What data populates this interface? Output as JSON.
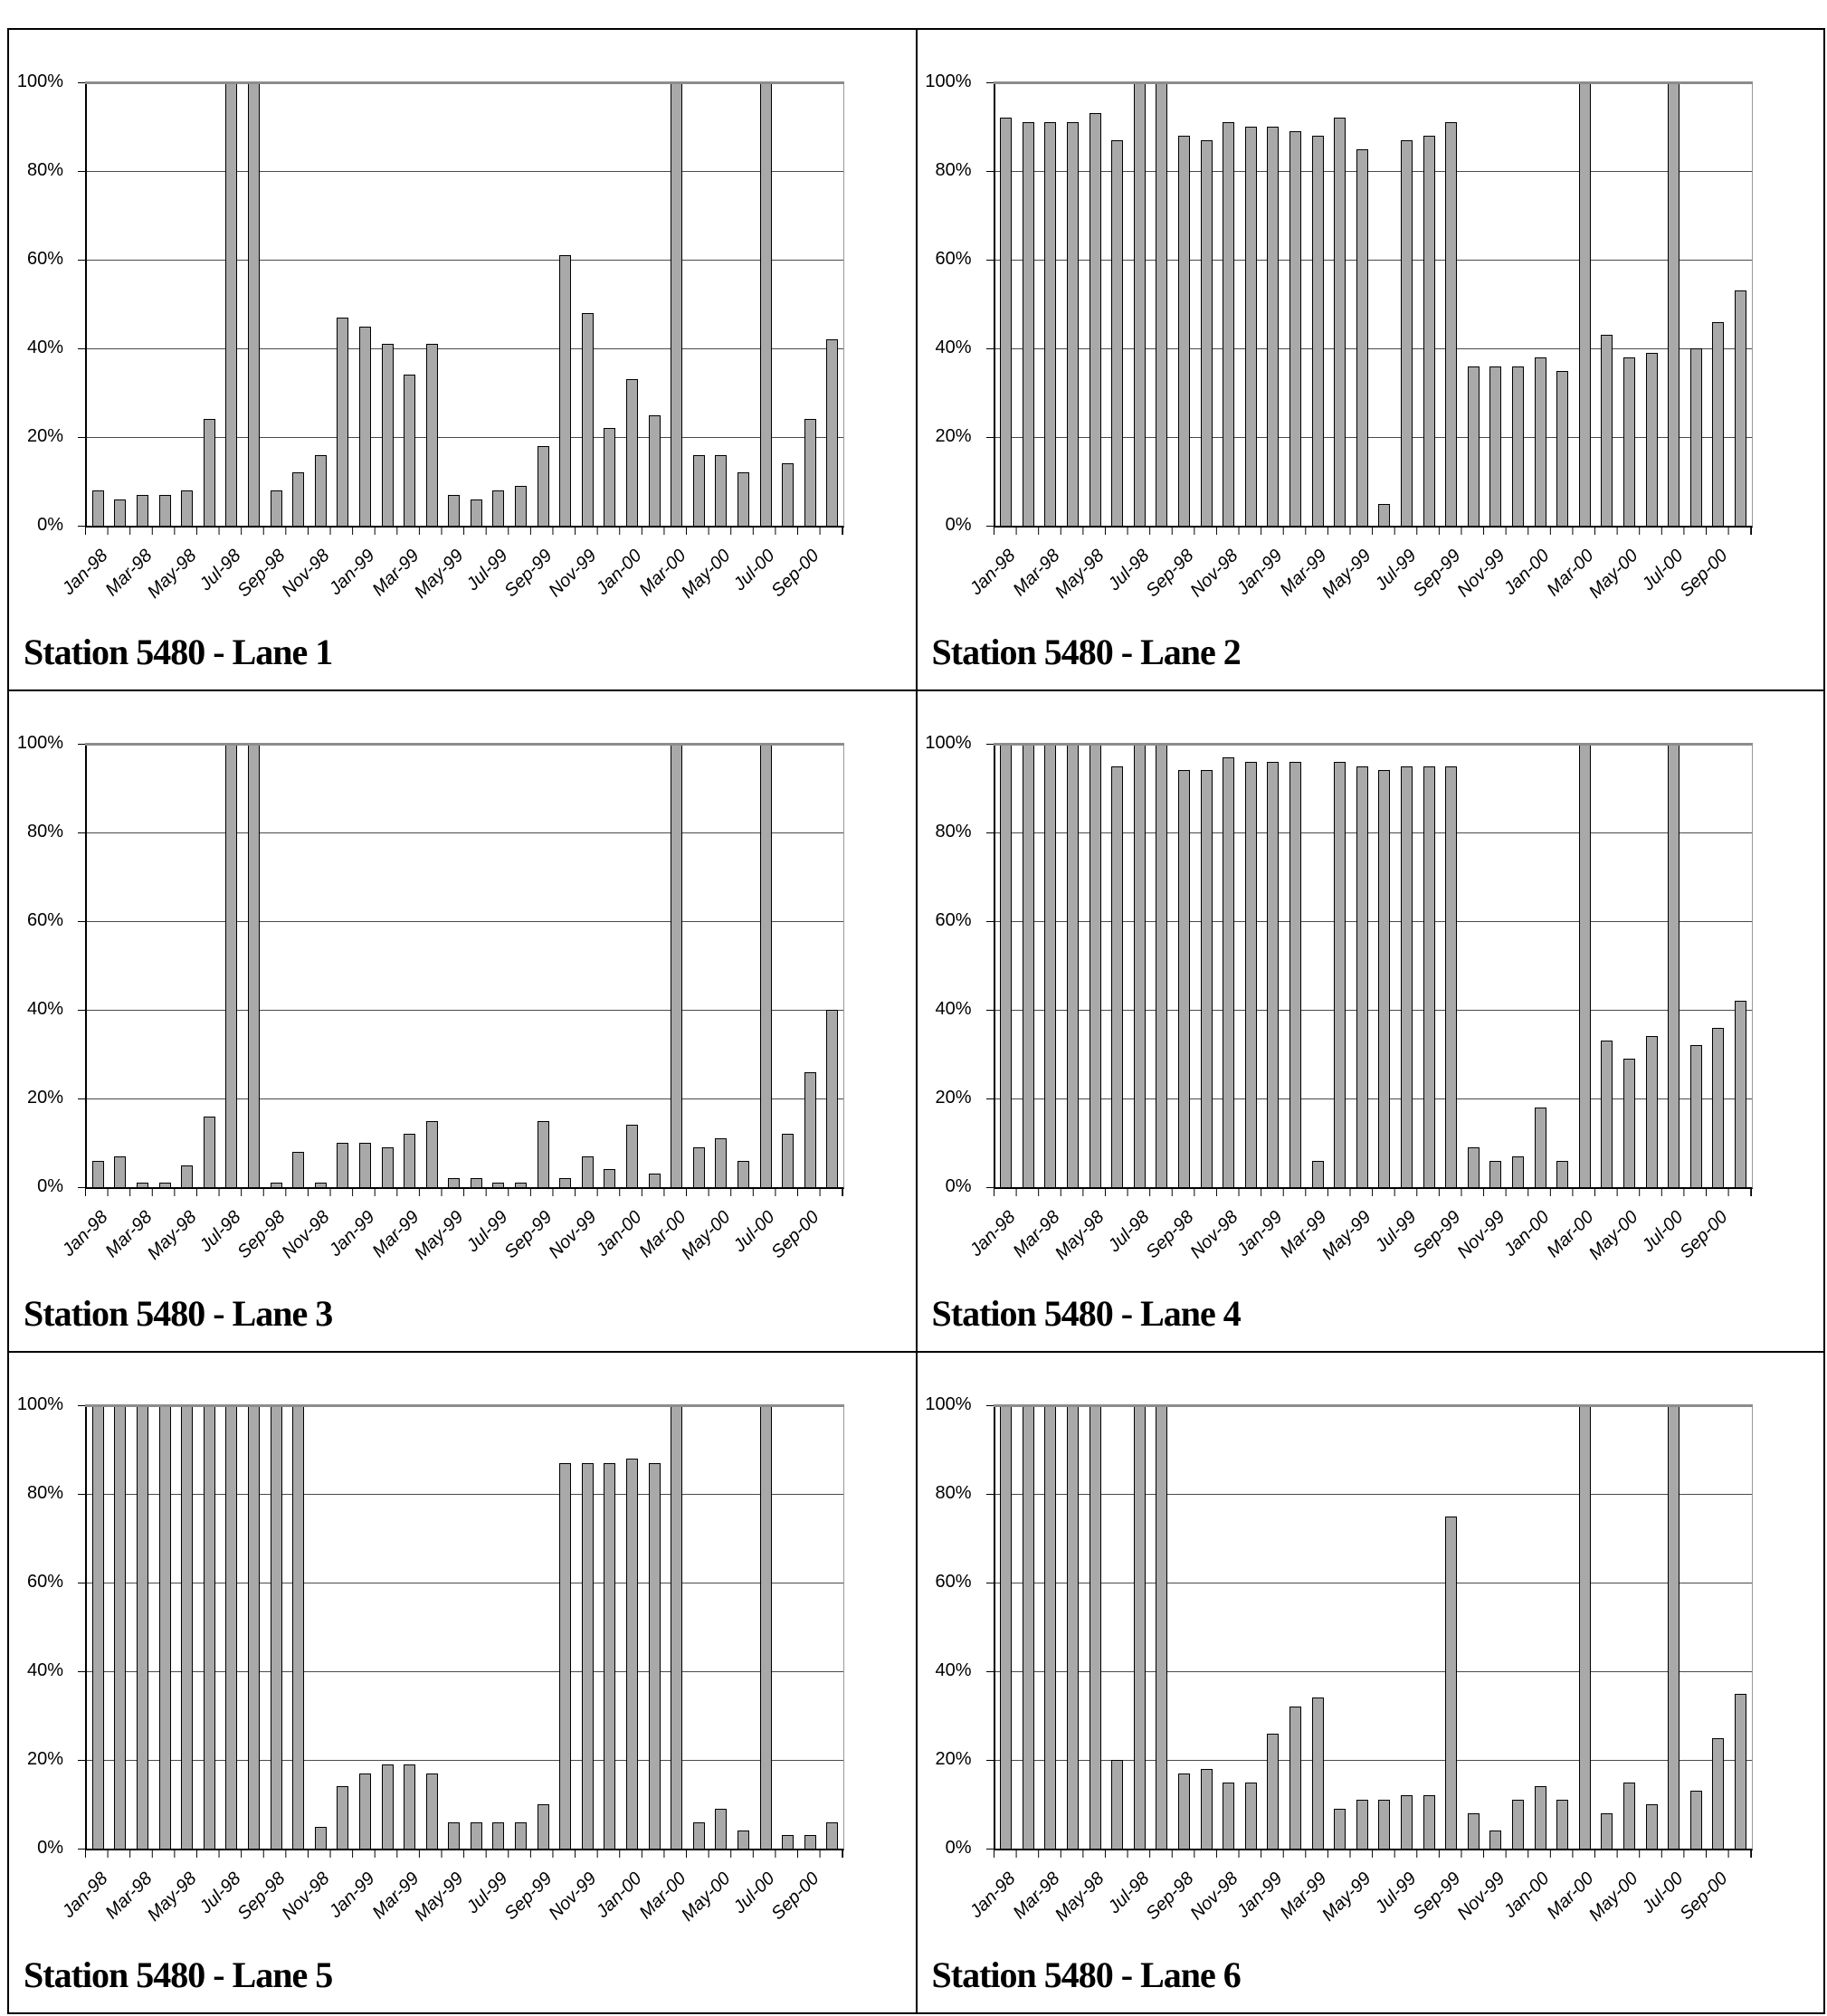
{
  "axis": {
    "y_tick_labels": [
      "100%",
      "80%",
      "60%",
      "40%",
      "20%",
      "0%"
    ],
    "ylim": [
      0,
      100
    ],
    "x_label_every": 2
  },
  "bar_color": "#a9a9a9",
  "chart_data": [
    {
      "type": "bar",
      "title": "Station 5480 - Lane 1",
      "xlabel": "",
      "ylabel": "",
      "ylim": [
        0,
        100
      ],
      "grid": true,
      "legend": false,
      "categories": [
        "Jan-98",
        "Feb-98",
        "Mar-98",
        "Apr-98",
        "May-98",
        "Jun-98",
        "Jul-98",
        "Aug-98",
        "Sep-98",
        "Oct-98",
        "Nov-98",
        "Dec-98",
        "Jan-99",
        "Feb-99",
        "Mar-99",
        "Apr-99",
        "May-99",
        "Jun-99",
        "Jul-99",
        "Aug-99",
        "Sep-99",
        "Oct-99",
        "Nov-99",
        "Dec-99",
        "Jan-00",
        "Feb-00",
        "Mar-00",
        "Apr-00",
        "May-00",
        "Jun-00",
        "Jul-00",
        "Aug-00",
        "Sep-00",
        "Oct-00"
      ],
      "values": [
        8,
        6,
        7,
        7,
        8,
        24,
        100,
        100,
        8,
        12,
        16,
        47,
        45,
        41,
        34,
        41,
        7,
        6,
        8,
        9,
        18,
        61,
        48,
        22,
        33,
        25,
        100,
        16,
        16,
        12,
        100,
        14,
        24,
        42
      ]
    },
    {
      "type": "bar",
      "title": "Station 5480 - Lane 2",
      "xlabel": "",
      "ylabel": "",
      "ylim": [
        0,
        100
      ],
      "grid": true,
      "legend": false,
      "categories": [
        "Jan-98",
        "Feb-98",
        "Mar-98",
        "Apr-98",
        "May-98",
        "Jun-98",
        "Jul-98",
        "Aug-98",
        "Sep-98",
        "Oct-98",
        "Nov-98",
        "Dec-98",
        "Jan-99",
        "Feb-99",
        "Mar-99",
        "Apr-99",
        "May-99",
        "Jun-99",
        "Jul-99",
        "Aug-99",
        "Sep-99",
        "Oct-99",
        "Nov-99",
        "Dec-99",
        "Jan-00",
        "Feb-00",
        "Mar-00",
        "Apr-00",
        "May-00",
        "Jun-00",
        "Jul-00",
        "Aug-00",
        "Sep-00",
        "Oct-00"
      ],
      "values": [
        92,
        91,
        91,
        91,
        93,
        87,
        100,
        100,
        88,
        87,
        91,
        90,
        90,
        89,
        88,
        92,
        85,
        5,
        87,
        88,
        91,
        36,
        36,
        36,
        38,
        35,
        100,
        43,
        38,
        39,
        100,
        40,
        46,
        53
      ]
    },
    {
      "type": "bar",
      "title": "Station 5480 - Lane 3",
      "xlabel": "",
      "ylabel": "",
      "ylim": [
        0,
        100
      ],
      "grid": true,
      "legend": false,
      "categories": [
        "Jan-98",
        "Feb-98",
        "Mar-98",
        "Apr-98",
        "May-98",
        "Jun-98",
        "Jul-98",
        "Aug-98",
        "Sep-98",
        "Oct-98",
        "Nov-98",
        "Dec-98",
        "Jan-99",
        "Feb-99",
        "Mar-99",
        "Apr-99",
        "May-99",
        "Jun-99",
        "Jul-99",
        "Aug-99",
        "Sep-99",
        "Oct-99",
        "Nov-99",
        "Dec-99",
        "Jan-00",
        "Feb-00",
        "Mar-00",
        "Apr-00",
        "May-00",
        "Jun-00",
        "Jul-00",
        "Aug-00",
        "Sep-00",
        "Oct-00"
      ],
      "values": [
        6,
        7,
        1,
        1,
        5,
        16,
        100,
        100,
        1,
        8,
        1,
        10,
        10,
        9,
        12,
        15,
        2,
        2,
        1,
        1,
        15,
        2,
        7,
        4,
        14,
        3,
        100,
        9,
        11,
        6,
        100,
        12,
        26,
        40
      ]
    },
    {
      "type": "bar",
      "title": "Station 5480 - Lane 4",
      "xlabel": "",
      "ylabel": "",
      "ylim": [
        0,
        100
      ],
      "grid": true,
      "legend": false,
      "categories": [
        "Jan-98",
        "Feb-98",
        "Mar-98",
        "Apr-98",
        "May-98",
        "Jun-98",
        "Jul-98",
        "Aug-98",
        "Sep-98",
        "Oct-98",
        "Nov-98",
        "Dec-98",
        "Jan-99",
        "Feb-99",
        "Mar-99",
        "Apr-99",
        "May-99",
        "Jun-99",
        "Jul-99",
        "Aug-99",
        "Sep-99",
        "Oct-99",
        "Nov-99",
        "Dec-99",
        "Jan-00",
        "Feb-00",
        "Mar-00",
        "Apr-00",
        "May-00",
        "Jun-00",
        "Jul-00",
        "Aug-00",
        "Sep-00",
        "Oct-00"
      ],
      "values": [
        100,
        100,
        100,
        100,
        100,
        95,
        100,
        100,
        94,
        94,
        97,
        96,
        96,
        96,
        6,
        96,
        95,
        94,
        95,
        95,
        95,
        9,
        6,
        7,
        18,
        6,
        100,
        33,
        29,
        34,
        100,
        32,
        36,
        42
      ]
    },
    {
      "type": "bar",
      "title": "Station 5480 - Lane 5",
      "xlabel": "",
      "ylabel": "",
      "ylim": [
        0,
        100
      ],
      "grid": true,
      "legend": false,
      "categories": [
        "Jan-98",
        "Feb-98",
        "Mar-98",
        "Apr-98",
        "May-98",
        "Jun-98",
        "Jul-98",
        "Aug-98",
        "Sep-98",
        "Oct-98",
        "Nov-98",
        "Dec-98",
        "Jan-99",
        "Feb-99",
        "Mar-99",
        "Apr-99",
        "May-99",
        "Jun-99",
        "Jul-99",
        "Aug-99",
        "Sep-99",
        "Oct-99",
        "Nov-99",
        "Dec-99",
        "Jan-00",
        "Feb-00",
        "Mar-00",
        "Apr-00",
        "May-00",
        "Jun-00",
        "Jul-00",
        "Aug-00",
        "Sep-00",
        "Oct-00"
      ],
      "values": [
        100,
        100,
        100,
        100,
        100,
        100,
        100,
        100,
        100,
        100,
        5,
        14,
        17,
        19,
        19,
        17,
        6,
        6,
        6,
        6,
        10,
        87,
        87,
        87,
        88,
        87,
        100,
        6,
        9,
        4,
        100,
        3,
        3,
        6
      ]
    },
    {
      "type": "bar",
      "title": "Station 5480 - Lane 6",
      "xlabel": "",
      "ylabel": "",
      "ylim": [
        0,
        100
      ],
      "grid": true,
      "legend": false,
      "categories": [
        "Jan-98",
        "Feb-98",
        "Mar-98",
        "Apr-98",
        "May-98",
        "Jun-98",
        "Jul-98",
        "Aug-98",
        "Sep-98",
        "Oct-98",
        "Nov-98",
        "Dec-98",
        "Jan-99",
        "Feb-99",
        "Mar-99",
        "Apr-99",
        "May-99",
        "Jun-99",
        "Jul-99",
        "Aug-99",
        "Sep-99",
        "Oct-99",
        "Nov-99",
        "Dec-99",
        "Jan-00",
        "Feb-00",
        "Mar-00",
        "Apr-00",
        "May-00",
        "Jun-00",
        "Jul-00",
        "Aug-00",
        "Sep-00",
        "Oct-00"
      ],
      "values": [
        100,
        100,
        100,
        100,
        100,
        20,
        100,
        100,
        17,
        18,
        15,
        15,
        26,
        32,
        34,
        9,
        11,
        11,
        12,
        12,
        75,
        8,
        4,
        11,
        14,
        11,
        100,
        8,
        15,
        10,
        100,
        13,
        25,
        35
      ]
    }
  ]
}
